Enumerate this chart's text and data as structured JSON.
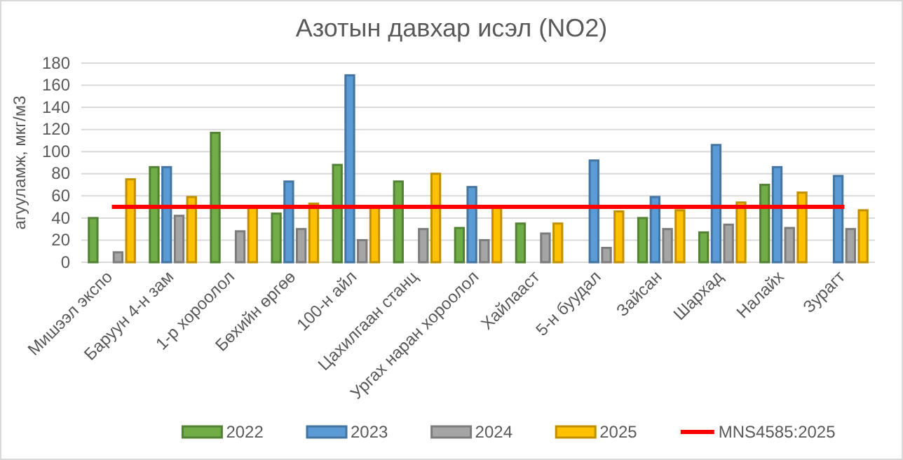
{
  "chart_data": {
    "type": "bar",
    "title": "Азотын давхар исэл (NO2)",
    "ylabel": "агууламж, мкг/м3",
    "categories": [
      "Мишээл экспо",
      "Баруун 4-н зам",
      "1-р хороолол",
      "Бөхийн өргөө",
      "100-н айл",
      "Цахилгаан станц",
      "Ургах наран хороолол",
      "Хайлааст",
      "5-н буудал",
      "Зайсан",
      "Шархад",
      "Налайх",
      "Зурагт"
    ],
    "series": [
      {
        "name": "2022",
        "color": "#70ad47",
        "values": [
          40,
          86,
          117,
          44,
          88,
          73,
          31,
          35,
          null,
          40,
          27,
          70,
          null
        ]
      },
      {
        "name": "2023",
        "color": "#5b9bd5",
        "values": [
          null,
          86,
          null,
          73,
          169,
          null,
          68,
          null,
          92,
          59,
          106,
          86,
          78
        ]
      },
      {
        "name": "2024",
        "color": "#a5a5a5",
        "values": [
          9,
          42,
          28,
          30,
          20,
          30,
          20,
          26,
          13,
          30,
          34,
          31,
          30
        ]
      },
      {
        "name": "2025",
        "color": "#ffc000",
        "values": [
          75,
          59,
          50,
          53,
          50,
          80,
          50,
          35,
          46,
          47,
          54,
          63,
          47
        ]
      },
      {
        "name": "MNS4585:2025",
        "type": "line",
        "color": "#ff0000",
        "values": [
          50,
          50,
          50,
          50,
          50,
          50,
          50,
          50,
          50,
          50,
          50,
          50,
          50
        ]
      }
    ],
    "ylim": [
      0,
      180
    ],
    "yticks": [
      0,
      20,
      40,
      60,
      80,
      100,
      120,
      140,
      160,
      180
    ],
    "grid": "y",
    "legend": "bottom"
  }
}
